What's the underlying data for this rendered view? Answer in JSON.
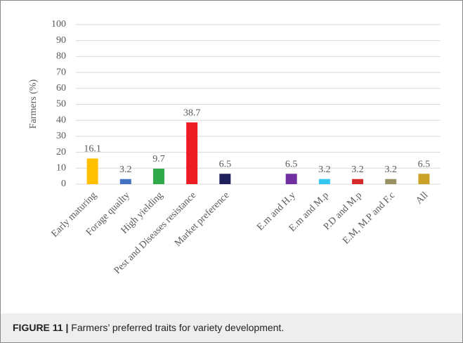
{
  "chart_data": {
    "type": "bar",
    "y_label": "Farmers (%)",
    "categories": [
      "Early maturing",
      "Forage quailty",
      "High yielding",
      "Pest and Diseases resistance",
      "Market preference",
      null,
      "E.m and H.y",
      "E.m and M.p",
      "P.D and M.p",
      "E.M, M.P and F.c",
      "All"
    ],
    "values": [
      16.1,
      3.2,
      9.7,
      38.7,
      6.5,
      null,
      6.5,
      3.2,
      3.2,
      3.2,
      6.5
    ],
    "colors": [
      "#FFC000",
      "#4472C4",
      "#2EAA4A",
      "#ED1C24",
      "#1F1F5C",
      null,
      "#7030A0",
      "#33C7F2",
      "#D62A2A",
      "#9A9163",
      "#C9A227"
    ],
    "ylim": [
      0,
      100
    ],
    "yticks": [
      0,
      10,
      20,
      30,
      40,
      50,
      60,
      70,
      80,
      90,
      100
    ],
    "grid": true,
    "figure_label": "FIGURE 11 |",
    "caption": "Farmers’ preferred traits for variety development."
  }
}
